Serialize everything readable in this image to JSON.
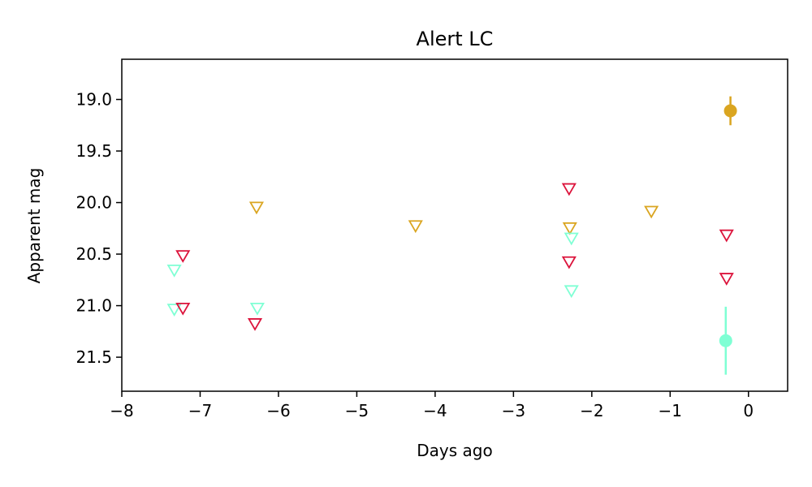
{
  "chart_data": {
    "type": "scatter",
    "title": "Alert LC",
    "xlabel": "Days ago",
    "ylabel": "Apparent mag",
    "xlim": [
      -8,
      0.5
    ],
    "ylim": [
      21.83,
      18.61
    ],
    "y_inverted": true,
    "grid": false,
    "x_ticks": [
      -8,
      -7,
      -6,
      -5,
      -4,
      -3,
      -2,
      -1,
      0
    ],
    "y_ticks": [
      19.0,
      19.5,
      20.0,
      20.5,
      21.0,
      21.5
    ],
    "series": [
      {
        "color": "#daa520",
        "detections": [
          {
            "x": -0.23,
            "y": 19.11,
            "err": 0.14
          }
        ],
        "upper_limits": [
          {
            "x": -6.28,
            "y": 20.05
          },
          {
            "x": -4.25,
            "y": 20.23
          },
          {
            "x": -2.28,
            "y": 20.25
          },
          {
            "x": -1.24,
            "y": 20.09
          }
        ]
      },
      {
        "color": "#7fffd4",
        "detections": [
          {
            "x": -0.29,
            "y": 21.34,
            "err": 0.33
          }
        ],
        "upper_limits": [
          {
            "x": -7.33,
            "y": 20.66
          },
          {
            "x": -7.33,
            "y": 21.04
          },
          {
            "x": -6.27,
            "y": 21.03
          },
          {
            "x": -2.26,
            "y": 20.35
          },
          {
            "x": -2.26,
            "y": 20.86
          }
        ]
      },
      {
        "color": "#dc143c",
        "detections": [],
        "upper_limits": [
          {
            "x": -7.22,
            "y": 20.52
          },
          {
            "x": -7.22,
            "y": 21.03
          },
          {
            "x": -6.3,
            "y": 21.18
          },
          {
            "x": -2.29,
            "y": 19.87
          },
          {
            "x": -2.29,
            "y": 20.58
          },
          {
            "x": -0.28,
            "y": 20.32
          },
          {
            "x": -0.28,
            "y": 20.74
          }
        ]
      }
    ]
  }
}
